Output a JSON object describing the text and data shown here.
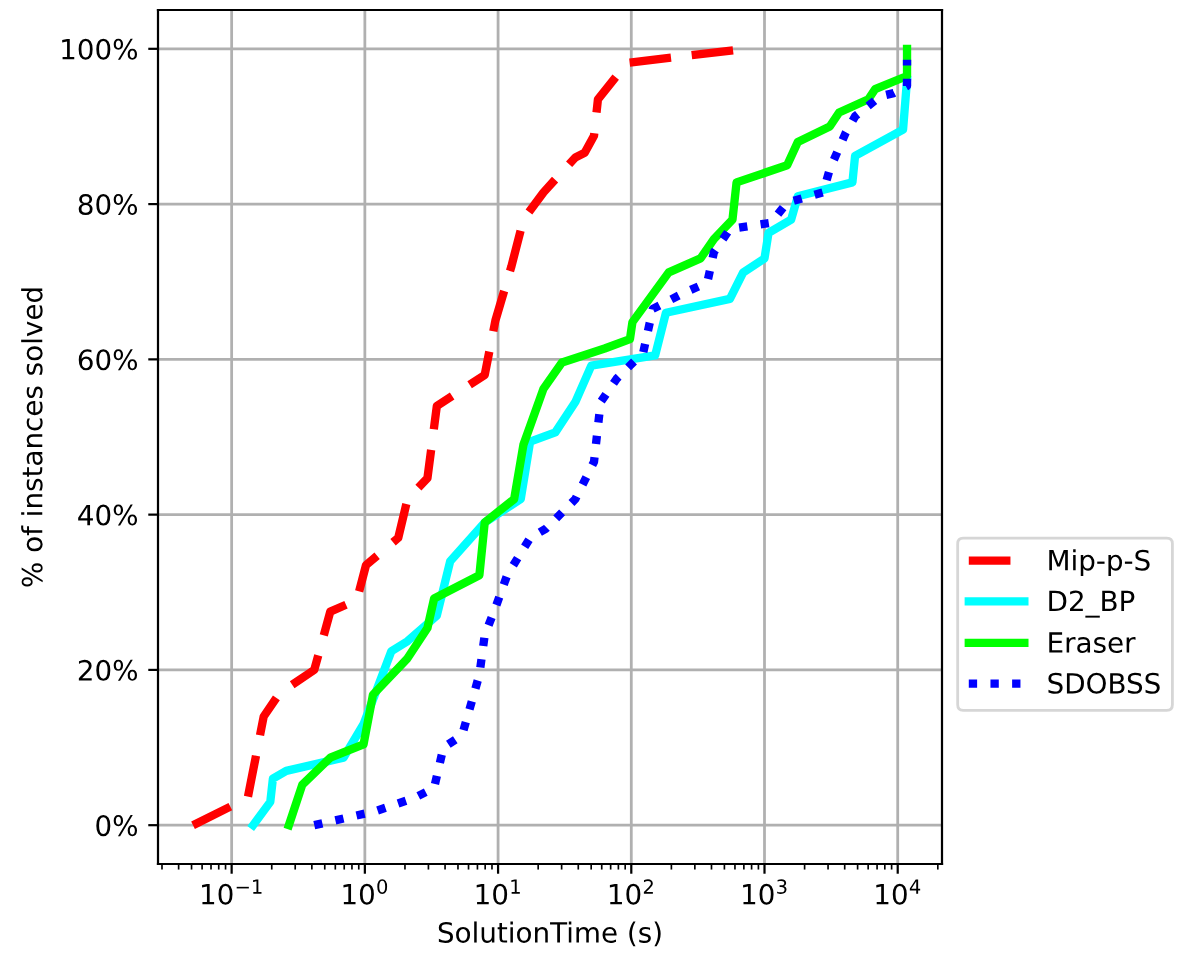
{
  "chart_data": {
    "type": "line",
    "xlabel": "SolutionTime (s)",
    "ylabel": "% of instances solved",
    "log": "x",
    "grid": true,
    "legend": "bottom right",
    "xlim": [
      0.028,
      21500
    ],
    "xticks": [
      {
        "value": 0.1,
        "label": "10$^{−1}$"
      },
      {
        "value": 1,
        "label": "10$^{0}$"
      },
      {
        "value": 10,
        "label": "10$^{1}$"
      },
      {
        "value": 100,
        "label": "10$^{2}$"
      },
      {
        "value": 1000,
        "label": "10$^{3}$"
      },
      {
        "value": 10000,
        "label": "10$^{4}$"
      }
    ],
    "ylim": [
      -5,
      105
    ],
    "yticks": [
      {
        "value": 0,
        "label": "0%"
      },
      {
        "value": 20,
        "label": "20%"
      },
      {
        "value": 40,
        "label": "40%"
      },
      {
        "value": 60,
        "label": "60%"
      },
      {
        "value": 80,
        "label": "80%"
      },
      {
        "value": 100,
        "label": "100%"
      }
    ],
    "series": [
      {
        "name": "Mip-p-S",
        "color": "#ff0000",
        "line_style": "dashed",
        "x": [
          0.0513,
          0.132,
          0.174,
          0.229,
          0.417,
          0.55,
          0.871,
          1.02,
          1.78,
          2.09,
          2.95,
          3.47,
          7.94,
          9.55,
          12.6,
          15.5,
          21.9,
          38.0,
          44.7,
          52.5,
          56.2,
          93.3,
          646
        ],
        "values": [
          0,
          3.5,
          14,
          17,
          20,
          27.5,
          29,
          33.5,
          37,
          42,
          44.7,
          54,
          58,
          65,
          72,
          78,
          81.5,
          86,
          86.6,
          88.8,
          93.5,
          98.2,
          99.9
        ]
      },
      {
        "name": "D2_BP",
        "color": "#00ffff",
        "line_style": "solid",
        "x": [
          0.145,
          0.195,
          0.204,
          0.257,
          0.692,
          0.977,
          1.2,
          1.58,
          2.09,
          3.47,
          4.37,
          7.94,
          14.8,
          17.4,
          26.9,
          38.0,
          50.1,
          151,
          182,
          550,
          692,
          1000,
          1072,
          1585,
          1778,
          4571,
          4786,
          10965,
          11749
        ],
        "values": [
          0,
          3,
          6,
          7,
          8.7,
          13,
          17,
          22.4,
          23.7,
          27,
          34,
          39,
          42,
          49.4,
          50.6,
          54.5,
          59.2,
          60.5,
          66,
          67.8,
          71.2,
          73,
          76.3,
          78,
          81,
          82.8,
          86.2,
          89.6,
          96
        ]
      },
      {
        "name": "Eraser",
        "color": "#00ff00",
        "line_style": "solid",
        "x": [
          0.269,
          0.339,
          0.55,
          0.977,
          1.15,
          2.09,
          2.95,
          3.31,
          7.24,
          7.94,
          13.2,
          15.5,
          21.9,
          30.2,
          63.1,
          97.7,
          102,
          191,
          331,
          417,
          575,
          617,
          1479,
          1778,
          3090,
          3631,
          6026,
          6761,
          11749,
          11749
        ],
        "values": [
          0,
          5.2,
          8.7,
          10.4,
          16.8,
          21.5,
          25.4,
          29.2,
          32.2,
          39,
          42,
          49,
          56.2,
          59.6,
          61.4,
          62.6,
          64.8,
          71.2,
          73,
          75.5,
          78,
          82.8,
          85,
          88,
          90,
          91.8,
          93.5,
          94.8,
          96.5,
          100
        ]
      },
      {
        "name": "SDOBSS",
        "color": "#0000ff",
        "line_style": "dotted",
        "x": [
          0.417,
          1.2,
          2.34,
          3.31,
          3.89,
          5.37,
          6.46,
          7.24,
          7.94,
          9.55,
          11.7,
          17.4,
          22.9,
          38.0,
          52.5,
          58.9,
          77.6,
          123,
          145,
          251,
          372,
          417,
          550,
          1122,
          1479,
          2754,
          3090,
          4074,
          4786,
          7413,
          9333,
          11749,
          11749
        ],
        "values": [
          0,
          1.8,
          3.5,
          4.8,
          10,
          11.6,
          16.4,
          19.4,
          24.5,
          28,
          32.2,
          37,
          38.2,
          42,
          46.8,
          54.5,
          57.5,
          60.9,
          66.5,
          68.6,
          69.9,
          73.8,
          76.8,
          77.6,
          80.2,
          81.5,
          84.5,
          89.2,
          91.3,
          93.9,
          94.3,
          95.2,
          98.6
        ]
      }
    ]
  }
}
